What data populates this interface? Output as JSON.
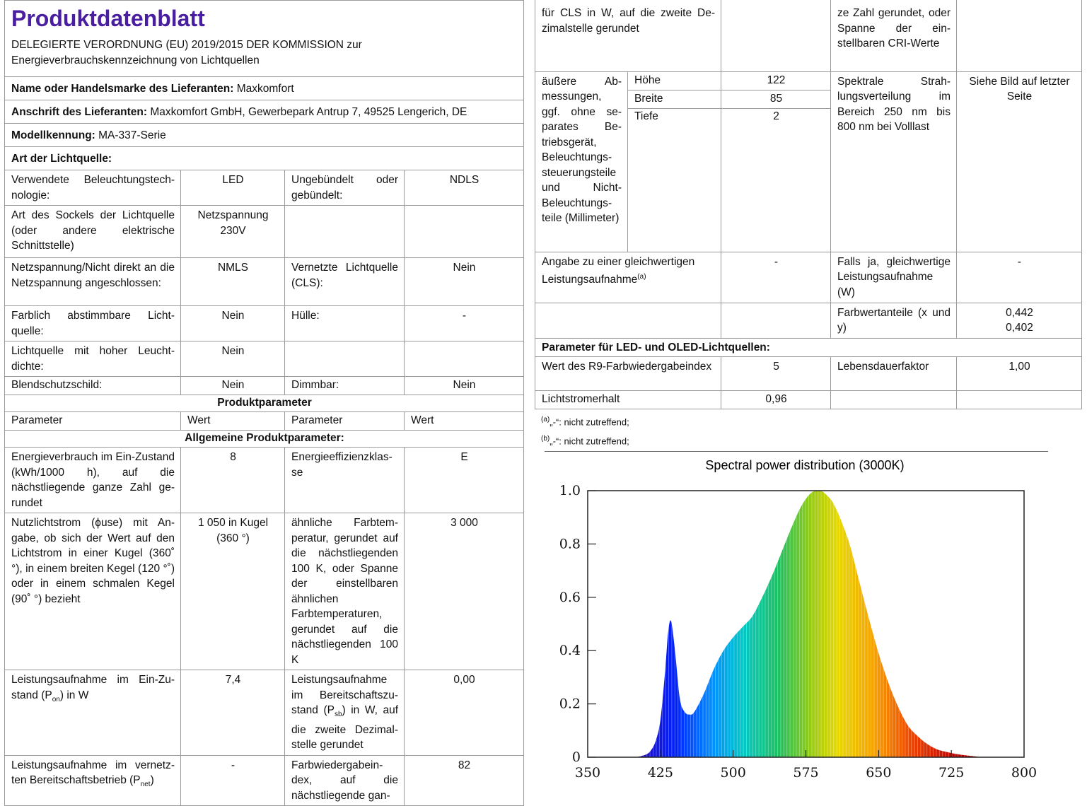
{
  "title": "Produktdatenblatt",
  "regulation": "DELEGIERTE VERORDNUNG (EU) 2019/2015 DER KOMMISSION zur Energieverbrauchskennzeichnung von Lichtquellen",
  "supplier": {
    "label": "Name oder Handelsmarke des Lieferanten:",
    "value": "Maxkomfort"
  },
  "address": {
    "label": "Anschrift des Lieferanten:",
    "value": "Maxkomfort GmbH, Gewerbepark Antrup 7, 49525 Lengerich, DE"
  },
  "model": {
    "label": "Modellkennung:",
    "value": "MA-337-Serie"
  },
  "light_type_heading": "Art der Lichtquelle:",
  "type_rows": [
    {
      "p1": "Verwendete Beleuchtungstech­nologie:",
      "v1": "LED",
      "p2": "Ungebündelt oder gebündelt:",
      "v2": "NDLS"
    },
    {
      "p1": "Art des Sockels der Lichtquelle (oder andere elektrische Schnittstelle)",
      "v1": "Netzspan­nung 230V",
      "p2": "",
      "v2": ""
    },
    {
      "p1": "Netzspannung/Nicht direkt an die Netzspannung angeschlos­sen:",
      "v1": "NMLS",
      "p2": "Vernetzte Lichtquel­le (CLS):",
      "v2": "Nein"
    },
    {
      "p1": "Farblich abstimmbare Licht­quelle:",
      "v1": "Nein",
      "p2": "Hülle:",
      "v2": "-"
    },
    {
      "p1": "Lichtquelle mit hoher Leucht­dichte:",
      "v1": "Nein",
      "p2": "",
      "v2": ""
    },
    {
      "p1": "Blendschutzschild:",
      "v1": "Nein",
      "p2": "Dimmbar:",
      "v2": "Nein"
    }
  ],
  "product_params_heading": "Produktparameter",
  "col_headers": [
    "Parameter",
    "Wert",
    "Parameter",
    "Wert"
  ],
  "general_heading": "Allgemeine Produktparameter:",
  "general_rows": [
    {
      "p1": "Energieverbrauch im Ein-Zu­stand (kWh/1000 h), auf die nächstliegende ganze Zahl ge­rundet",
      "v1": "8",
      "p2": "Energieeffizienzklas­se",
      "v2": "E"
    },
    {
      "p1": "Nutzlichtstrom (ϕuse) mit An­gabe, ob sich der Wert auf den Lichtstrom in einer Kugel (360˚ °), in einem breiten Kegel (120 °˚) oder in einem schmalen Kegel (90˚ °) bezieht",
      "v1": "1 050 in Ku­gel (360 °)",
      "p2": "ähnliche Farbtem­peratur, gerundet auf die nächst­liegenden 100 K, oder Spanne der einstellbaren ähnli­chen Farbtempera­turen, gerundet auf die nächstliegenden 100 K",
      "v2": "3 000"
    },
    {
      "p1": "Leistungsaufnahme im Ein-Zu­stand (P",
      "p1_sub": "on",
      "p1_tail": ") in W",
      "v1": "7,4",
      "p2": "Leistungsaufnahme im Bereitschaftszu­stand (P",
      "p2_sub": "sb",
      "p2_tail": ") in W, auf die zweite Dezimal­stelle gerundet",
      "v2": "0,00"
    },
    {
      "p1": "Leistungsaufnahme im vernetz­ten Bereitschaftsbetrieb (P",
      "p1_sub": "net",
      "p1_tail": ")",
      "v1": "-",
      "p2": "Farbwiedergabein­dex, auf die nächstliegende gan-",
      "v2": "82"
    }
  ],
  "right": {
    "cont_p1": "für CLS in W, auf die zweite De­zimalstelle gerundet",
    "cont_p2": "ze Zahl gerundet, oder Spanne der ein­stellbaren CRI-Wer­te",
    "dims_label": "äußere Ab­messungen, ggf. ohne se­parates Be­triebsgerät, Beleuchtungs­steuerungstei­le und Nicht-Beleuchtungs­teile (Millime­ter)",
    "dims": [
      {
        "name": "Höhe",
        "value": "122"
      },
      {
        "name": "Breite",
        "value": "85"
      },
      {
        "name": "Tiefe",
        "value": "2"
      }
    ],
    "spectral_label": "Spektrale Strah­lungsverteilung im Bereich 250 nm bis 800 nm bei Volllast",
    "spectral_value": "Siehe Bild auf letzter Seite",
    "equiv_label": "Angabe zu einer gleichwertigen Leistungsaufnahme",
    "equiv_sup": "(a)",
    "equiv_value": "-",
    "equiv_power_label": "Falls ja, gleichwerti­ge Leistungsaufnah­me (W)",
    "equiv_power_value": "-",
    "chroma_label": "Farbwertanteile (x und y)",
    "chroma_x": "0,442",
    "chroma_y": "0,402",
    "led_heading": "Parameter für LED- und OLED-Lichtquellen:",
    "r9_label": "Wert des R9-Farbwiedergabein­dex",
    "r9_value": "5",
    "life_label": "Lebensdauerfaktor",
    "life_value": "1,00",
    "lumen_label": "Lichtstromerhalt",
    "lumen_value": "0,96",
    "note_a_sup": "(a)",
    "note_a": "„-“: nicht zutreffend;",
    "note_b_sup": "(b)",
    "note_b": "„-“: nicht zutreffend;"
  },
  "chart_data": {
    "type": "area",
    "title": "Spectral power distribution (3000K)",
    "xlabel": "",
    "ylabel": "",
    "xlim": [
      350,
      800
    ],
    "ylim": [
      0,
      1.0
    ],
    "xticks": [
      350,
      425,
      500,
      575,
      650,
      725,
      800
    ],
    "yticks": [
      0,
      0.2,
      0.4,
      0.6,
      0.8,
      1.0
    ],
    "ytick_labels": [
      "0",
      "0.2",
      "0.4",
      "0.6",
      "0.8",
      "1.0"
    ],
    "x": [
      400,
      410,
      415,
      420,
      425,
      430,
      433,
      436,
      440,
      445,
      450,
      455,
      460,
      470,
      480,
      490,
      500,
      510,
      520,
      530,
      540,
      550,
      560,
      570,
      580,
      590,
      600,
      605,
      610,
      620,
      630,
      640,
      650,
      660,
      670,
      680,
      690,
      700,
      710,
      720,
      730,
      740,
      750,
      755
    ],
    "values": [
      0.0,
      0.01,
      0.025,
      0.06,
      0.14,
      0.33,
      0.47,
      0.51,
      0.4,
      0.22,
      0.17,
      0.16,
      0.17,
      0.24,
      0.33,
      0.4,
      0.45,
      0.49,
      0.53,
      0.6,
      0.68,
      0.77,
      0.86,
      0.94,
      0.99,
      1.0,
      0.97,
      0.94,
      0.9,
      0.8,
      0.66,
      0.52,
      0.39,
      0.28,
      0.19,
      0.12,
      0.08,
      0.05,
      0.03,
      0.02,
      0.012,
      0.007,
      0.003,
      0.0
    ],
    "grid": false,
    "fill": "wavelength-rainbow"
  }
}
